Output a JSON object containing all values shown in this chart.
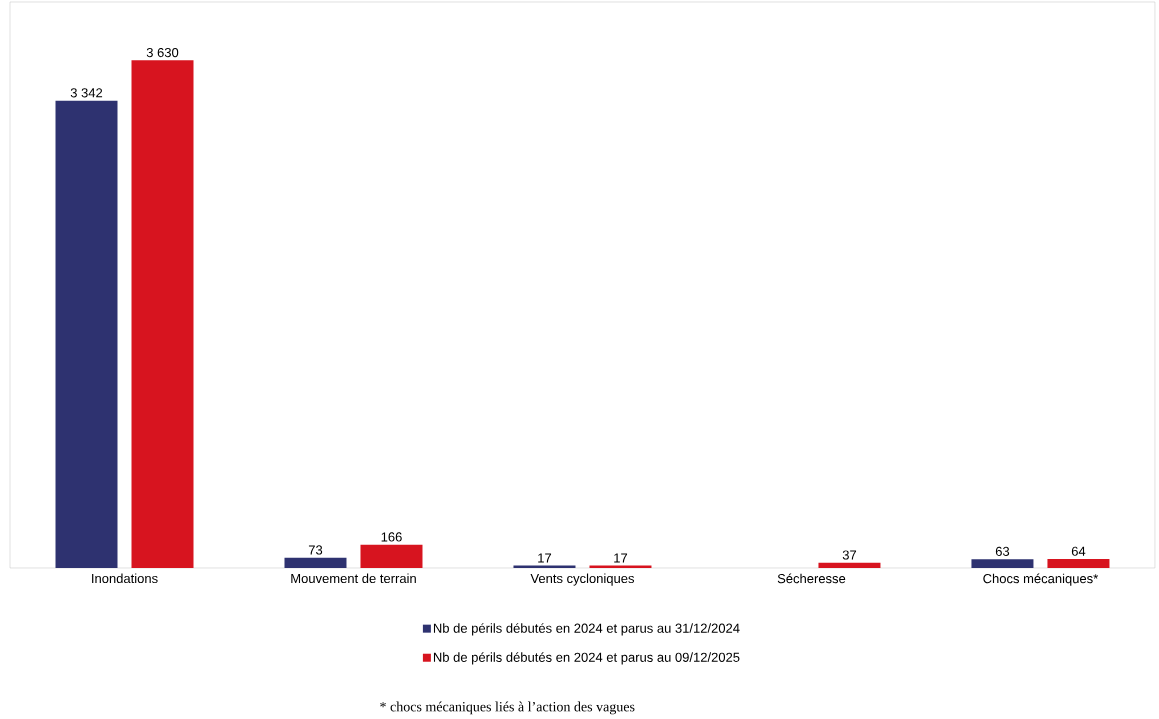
{
  "chart_data": {
    "type": "bar",
    "categories": [
      "Inondations",
      "Mouvement de terrain",
      "Vents cycloniques",
      "Sécheresse",
      "Chocs mécaniques*"
    ],
    "series": [
      {
        "name": "Nb de périls débutés en 2024 et parus au 31/12/2024",
        "color": "#2e3270",
        "values": [
          3342,
          73,
          17,
          null,
          63
        ],
        "value_labels": [
          "3 342",
          "73",
          "17",
          null,
          "63"
        ]
      },
      {
        "name": "Nb de périls débutés en 2024 et parus au 09/12/2025",
        "color": "#d7141f",
        "values": [
          3630,
          166,
          17,
          37,
          64
        ],
        "value_labels": [
          "3 630",
          "166",
          "17",
          "37",
          "64"
        ]
      }
    ],
    "legend": "bottom",
    "grid": false,
    "annotations": [
      "* chocs mécaniques liés à l’action des vagues"
    ]
  }
}
